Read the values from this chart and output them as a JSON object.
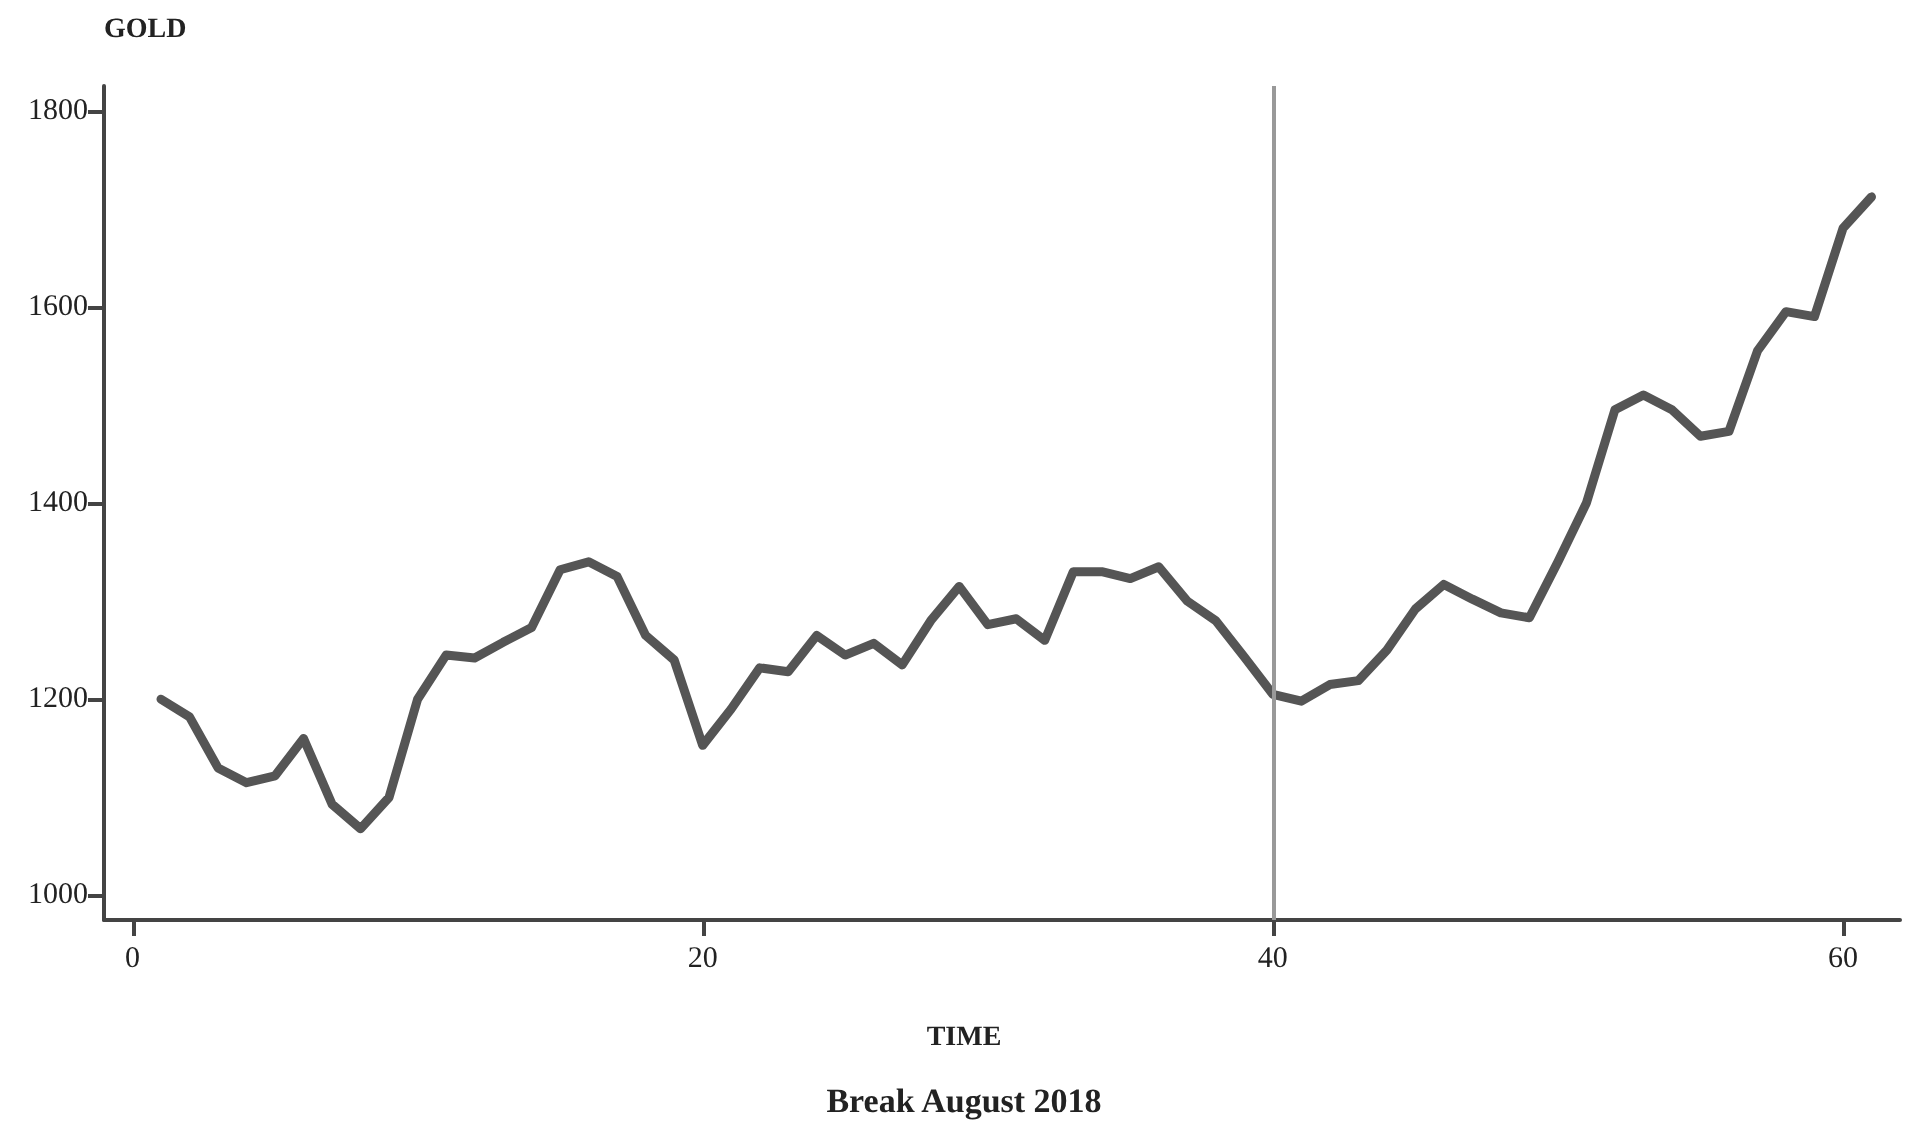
{
  "chart_data": {
    "type": "line",
    "ylabel": "GOLD",
    "xlabel": "TIME",
    "annotations": [
      "Break August 2018"
    ],
    "x": [
      1,
      2,
      3,
      4,
      5,
      6,
      7,
      8,
      9,
      10,
      11,
      12,
      13,
      14,
      15,
      16,
      17,
      18,
      19,
      20,
      21,
      22,
      23,
      24,
      25,
      26,
      27,
      28,
      29,
      30,
      31,
      32,
      33,
      34,
      35,
      36,
      37,
      38,
      39,
      40,
      41,
      42,
      43,
      44,
      45,
      46,
      47,
      48,
      49,
      50,
      51,
      52,
      53,
      54,
      55,
      56,
      57,
      58,
      59,
      60,
      61
    ],
    "series": [
      {
        "color": "#555555",
        "values": [
          1200,
          1182,
          1130,
          1115,
          1122,
          1160,
          1093,
          1068,
          1100,
          1200,
          1245,
          1242,
          1258,
          1273,
          1332,
          1340,
          1325,
          1265,
          1240,
          1153,
          1190,
          1232,
          1228,
          1265,
          1245,
          1257,
          1235,
          1280,
          1315,
          1276,
          1282,
          1260,
          1330,
          1330,
          1323,
          1335,
          1300,
          1280,
          1243,
          1205,
          1198,
          1215,
          1219,
          1250,
          1292,
          1317,
          1302,
          1288,
          1283,
          1340,
          1400,
          1495,
          1510,
          1495,
          1468,
          1473,
          1555,
          1595,
          1590,
          1680,
          1712
        ]
      }
    ],
    "xlim": [
      -1,
      62
    ],
    "xticks": [
      0,
      20,
      40,
      60
    ],
    "ylim": [
      975,
      1825
    ],
    "yticks": [
      1000,
      1200,
      1400,
      1600,
      1800
    ],
    "ref_lines": [
      {
        "axis": "x",
        "value": 40,
        "color": "#999999"
      }
    ],
    "grid": false,
    "marker": "none",
    "line_style": "solid"
  }
}
